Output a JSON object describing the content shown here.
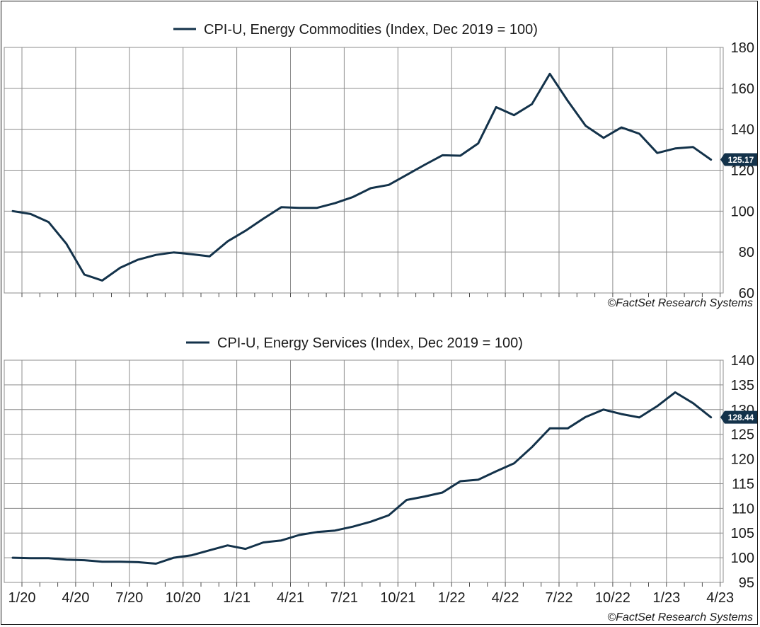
{
  "colors": {
    "series": "#13324a",
    "grid": "#8c8c8c",
    "tag_text": "#ffffff"
  },
  "x_tick_labels": [
    "1/20",
    "4/20",
    "7/20",
    "10/20",
    "1/21",
    "4/21",
    "7/21",
    "10/21",
    "1/22",
    "4/22",
    "7/22",
    "10/22",
    "1/23",
    "4/23"
  ],
  "chart_data": [
    {
      "type": "line",
      "legend": "CPI-U, Energy Commodities (Index, Dec 2019 = 100)",
      "credit": "©FactSet Research Systems",
      "ylim": [
        60,
        180
      ],
      "yticks": [
        60,
        80,
        100,
        120,
        140,
        160,
        180
      ],
      "grid": true,
      "last_value_label": "125.17",
      "series": [
        {
          "values": [
            100.0,
            98.6,
            94.7,
            84.0,
            69.0,
            66.1,
            72.3,
            76.3,
            78.6,
            79.8,
            78.9,
            77.9,
            85.2,
            90.4,
            96.3,
            101.9,
            101.6,
            101.6,
            103.9,
            106.9,
            111.2,
            112.8,
            117.7,
            122.6,
            127.3,
            127.1,
            133.1,
            150.8,
            146.9,
            152.3,
            167.1,
            153.9,
            141.7,
            135.8,
            140.9,
            137.8,
            128.4,
            130.6,
            131.3,
            125.17
          ]
        }
      ]
    },
    {
      "type": "line",
      "legend": "CPI-U, Energy Services (Index, Dec 2019 = 100)",
      "credit": "©FactSet Research Systems",
      "ylim": [
        95,
        140
      ],
      "yticks": [
        95,
        100,
        105,
        110,
        115,
        120,
        125,
        130,
        135,
        140
      ],
      "grid": true,
      "last_value_label": "128.44",
      "series": [
        {
          "values": [
            100.0,
            99.9,
            99.9,
            99.6,
            99.5,
            99.2,
            99.2,
            99.1,
            98.8,
            100.0,
            100.5,
            101.5,
            102.5,
            101.8,
            103.1,
            103.5,
            104.6,
            105.2,
            105.5,
            106.3,
            107.3,
            108.6,
            111.7,
            112.4,
            113.2,
            115.5,
            115.8,
            117.5,
            119.1,
            122.4,
            126.2,
            126.2,
            128.5,
            130.0,
            129.1,
            128.4,
            130.7,
            133.5,
            131.3,
            128.44
          ]
        }
      ]
    }
  ]
}
